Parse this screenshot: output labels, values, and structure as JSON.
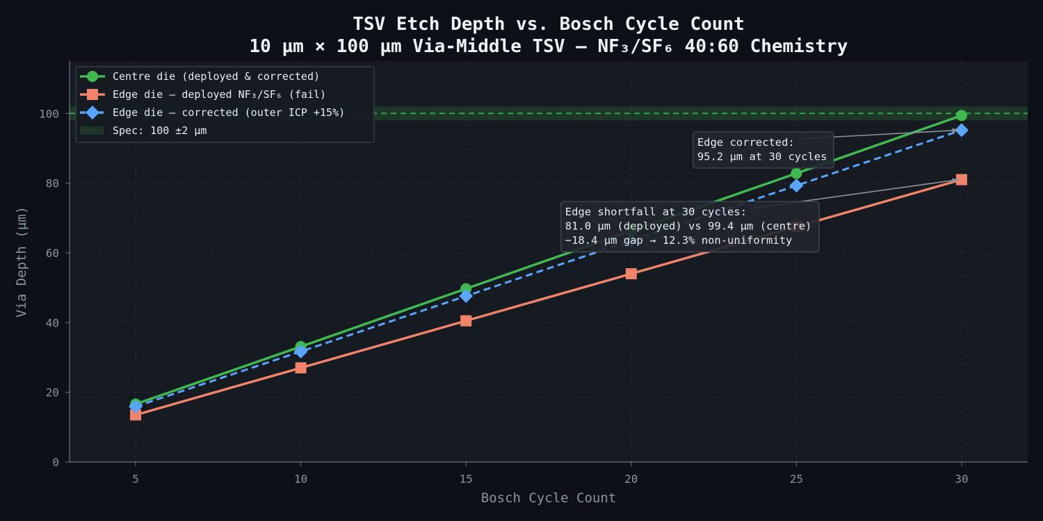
{
  "chart_data": {
    "type": "line",
    "title": "TSV Etch Depth vs. Bosch Cycle Count",
    "subtitle": "10 µm × 100 µm Via-Middle TSV — NF₃/SF₆ 40:60 Chemistry",
    "xlabel": "Bosch Cycle Count",
    "ylabel": "Via Depth (µm)",
    "xlim": [
      3,
      32
    ],
    "ylim": [
      0,
      115
    ],
    "x_ticks": [
      "5",
      "10",
      "15",
      "20",
      "25",
      "30"
    ],
    "y_ticks": [
      "0",
      "20",
      "40",
      "60",
      "80",
      "100"
    ],
    "grid": true,
    "legend_position": "top-left",
    "x": [
      5,
      10,
      15,
      20,
      25,
      30
    ],
    "series": [
      {
        "name": "Centre die (deployed & corrected)",
        "values": [
          16.6,
          33.1,
          49.7,
          66.3,
          82.8,
          99.4
        ],
        "color": "#3fb950",
        "marker": "circle",
        "dash": "solid"
      },
      {
        "name": "Edge die — deployed NF₃/SF₆ (fail)",
        "values": [
          13.5,
          27.0,
          40.5,
          54.0,
          67.5,
          81.0
        ],
        "color": "#f0836a",
        "marker": "square",
        "dash": "solid"
      },
      {
        "name": "Edge die — corrected (outer ICP +15%)",
        "values": [
          15.9,
          31.7,
          47.6,
          63.5,
          79.3,
          95.2
        ],
        "color": "#58a6ff",
        "marker": "diamond",
        "dash": "dashed"
      }
    ],
    "spec_band": {
      "label": "Spec: 100 ±2 µm",
      "center": 100,
      "tolerance": 2,
      "color": "#3fb950"
    },
    "annotations": [
      {
        "lines": [
          "Edge corrected:",
          "95.2 µm at 30 cycles"
        ],
        "target": [
          30,
          95.2
        ],
        "anchor_xy": [
          22,
          89.5
        ]
      },
      {
        "lines": [
          "Edge shortfall at 30 cycles:",
          "81.0 µm (deployed) vs 99.4 µm (centre)",
          "−18.4 µm gap → 12.3% non-uniformity"
        ],
        "target": [
          30,
          81.0
        ],
        "anchor_xy": [
          18,
          67.5
        ]
      }
    ]
  }
}
